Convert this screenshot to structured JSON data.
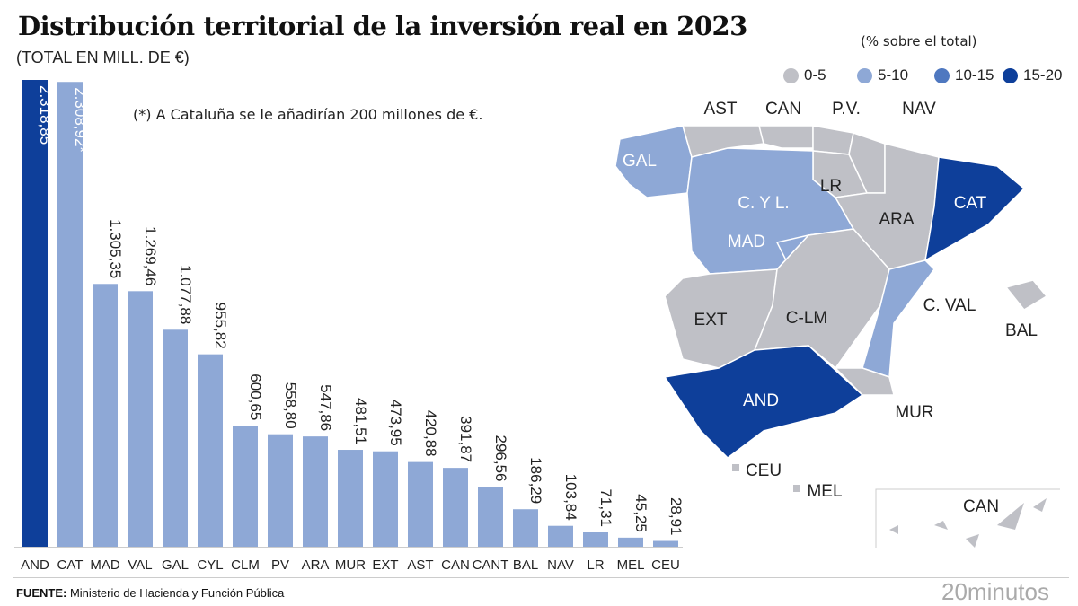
{
  "title": "Distribución territorial de la inversión real en 2023",
  "subtitle": "(TOTAL EN MILL. DE €)",
  "note": "(*) A Cataluña se le añadirían 200 millones de €.",
  "legend": {
    "title": "(% sobre el total)",
    "items": [
      {
        "label": "0-5",
        "color": "#bfc0c6"
      },
      {
        "label": "5-10",
        "color": "#8ea8d6"
      },
      {
        "label": "10-15",
        "color": "#4f78c0"
      },
      {
        "label": "15-20",
        "color": "#0e3f9a"
      }
    ]
  },
  "footer": {
    "label": "FUENTE:",
    "text": " Ministerio de Hacienda y Función Pública"
  },
  "logo": "20minutos",
  "chart_data": {
    "type": "bar",
    "categories": [
      "AND",
      "CAT",
      "MAD",
      "VAL",
      "GAL",
      "CYL",
      "CLM",
      "PV",
      "ARA",
      "MUR",
      "EXT",
      "AST",
      "CAN",
      "CANT",
      "BAL",
      "NAV",
      "LR",
      "MEL",
      "CEU"
    ],
    "values": [
      2318.85,
      2308.92,
      1305.35,
      1269.46,
      1077.88,
      955.82,
      600.65,
      558.8,
      547.86,
      481.51,
      473.95,
      420.88,
      391.87,
      296.56,
      186.29,
      103.84,
      71.31,
      45.25,
      28.91
    ],
    "value_labels": [
      "2.318,85",
      "2.308,92*",
      "1.305,35",
      "1.269,46",
      "1.077,88",
      "955,82",
      "600,65",
      "558,80",
      "547,86",
      "481,51",
      "473,95",
      "420,88",
      "391,87",
      "296,56",
      "186,29",
      "103,84",
      "71,31",
      "45,25",
      "28,91"
    ],
    "bar_colors": [
      "#0e3f9a",
      "#8ea8d6",
      "#8ea8d6",
      "#8ea8d6",
      "#8ea8d6",
      "#8ea8d6",
      "#8ea8d6",
      "#8ea8d6",
      "#8ea8d6",
      "#8ea8d6",
      "#8ea8d6",
      "#8ea8d6",
      "#8ea8d6",
      "#8ea8d6",
      "#8ea8d6",
      "#8ea8d6",
      "#8ea8d6",
      "#8ea8d6",
      "#8ea8d6"
    ],
    "ylim": [
      0,
      2318.85
    ]
  },
  "map": {
    "regions": [
      {
        "label": "GAL",
        "color": "#8ea8d6"
      },
      {
        "label": "AST",
        "color": "#bfc0c6"
      },
      {
        "label": "CAN",
        "color": "#bfc0c6"
      },
      {
        "label": "P.V.",
        "color": "#bfc0c6"
      },
      {
        "label": "NAV",
        "color": "#bfc0c6"
      },
      {
        "label": "LR",
        "color": "#bfc0c6"
      },
      {
        "label": "C. Y L.",
        "color": "#8ea8d6"
      },
      {
        "label": "MAD",
        "color": "#8ea8d6"
      },
      {
        "label": "ARA",
        "color": "#bfc0c6"
      },
      {
        "label": "CAT",
        "color": "#0e3f9a"
      },
      {
        "label": "EXT",
        "color": "#bfc0c6"
      },
      {
        "label": "C-LM",
        "color": "#bfc0c6"
      },
      {
        "label": "C. VAL",
        "color": "#8ea8d6"
      },
      {
        "label": "BAL",
        "color": "#bfc0c6"
      },
      {
        "label": "AND",
        "color": "#0e3f9a"
      },
      {
        "label": "MUR",
        "color": "#bfc0c6"
      },
      {
        "label": "CEU",
        "color": "#bfc0c6"
      },
      {
        "label": "MEL",
        "color": "#bfc0c6"
      },
      {
        "label": "CAN",
        "color": "#bfc0c6"
      }
    ]
  }
}
